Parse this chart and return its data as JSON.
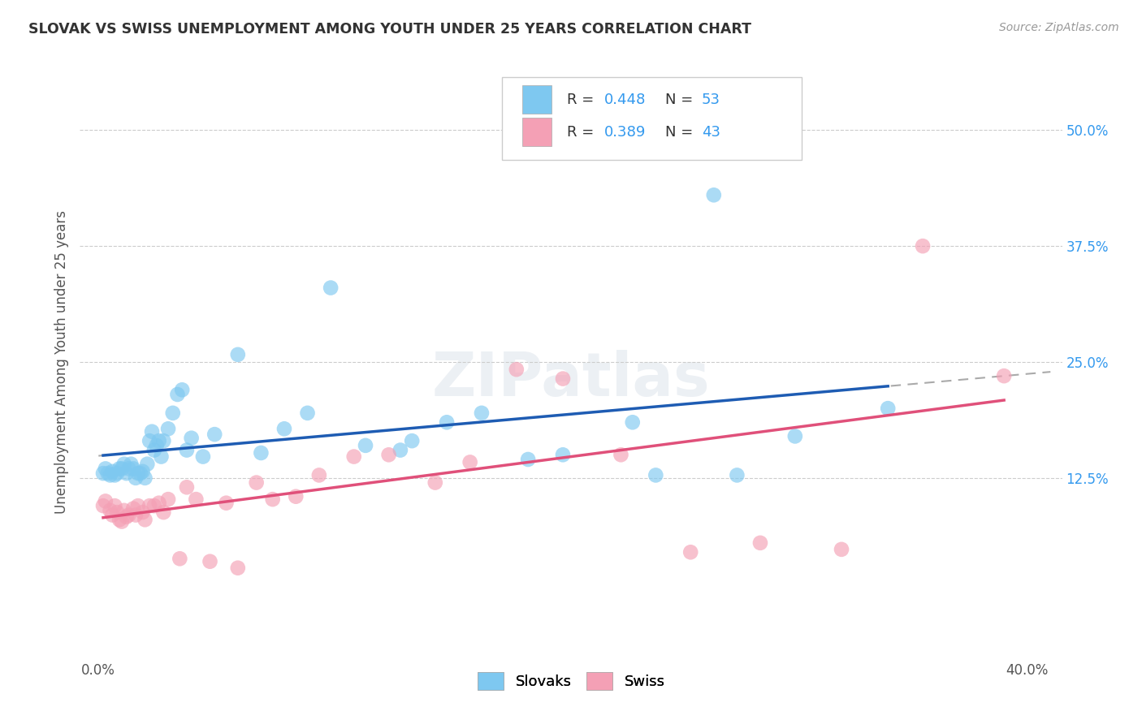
{
  "title": "SLOVAK VS SWISS UNEMPLOYMENT AMONG YOUTH UNDER 25 YEARS CORRELATION CHART",
  "source": "Source: ZipAtlas.com",
  "ylabel": "Unemployment Among Youth under 25 years",
  "xlim": [
    -0.008,
    0.415
  ],
  "ylim": [
    -0.07,
    0.57
  ],
  "yticks": [
    0.125,
    0.25,
    0.375,
    0.5
  ],
  "yticklabels": [
    "12.5%",
    "25.0%",
    "37.5%",
    "50.0%"
  ],
  "xticks": [
    0.0,
    0.1,
    0.2,
    0.3,
    0.4
  ],
  "xticklabels": [
    "0.0%",
    "",
    "",
    "",
    "40.0%"
  ],
  "slovak_color": "#7EC8F0",
  "swiss_color": "#F4A0B5",
  "slovak_line_color": "#1E5CB3",
  "swiss_line_color": "#E0507A",
  "trend_line_color": "#aaaaaa",
  "bg_color": "#ffffff",
  "grid_color": "#cccccc",
  "slovak_x": [
    0.002,
    0.003,
    0.004,
    0.005,
    0.006,
    0.007,
    0.008,
    0.009,
    0.01,
    0.011,
    0.012,
    0.013,
    0.014,
    0.015,
    0.016,
    0.017,
    0.018,
    0.019,
    0.02,
    0.021,
    0.022,
    0.023,
    0.024,
    0.025,
    0.026,
    0.027,
    0.028,
    0.03,
    0.032,
    0.034,
    0.036,
    0.038,
    0.04,
    0.045,
    0.05,
    0.06,
    0.07,
    0.08,
    0.09,
    0.1,
    0.115,
    0.13,
    0.15,
    0.165,
    0.185,
    0.2,
    0.23,
    0.265,
    0.3,
    0.34,
    0.24,
    0.275,
    0.135
  ],
  "slovak_y": [
    0.13,
    0.135,
    0.13,
    0.128,
    0.132,
    0.128,
    0.13,
    0.135,
    0.135,
    0.14,
    0.13,
    0.135,
    0.14,
    0.135,
    0.125,
    0.13,
    0.13,
    0.132,
    0.125,
    0.14,
    0.165,
    0.175,
    0.155,
    0.16,
    0.165,
    0.148,
    0.165,
    0.178,
    0.195,
    0.215,
    0.22,
    0.155,
    0.168,
    0.148,
    0.172,
    0.258,
    0.152,
    0.178,
    0.195,
    0.33,
    0.16,
    0.155,
    0.185,
    0.195,
    0.145,
    0.15,
    0.185,
    0.43,
    0.17,
    0.2,
    0.128,
    0.128,
    0.165
  ],
  "swiss_x": [
    0.002,
    0.003,
    0.005,
    0.006,
    0.007,
    0.008,
    0.009,
    0.01,
    0.011,
    0.012,
    0.013,
    0.015,
    0.016,
    0.017,
    0.019,
    0.02,
    0.022,
    0.024,
    0.026,
    0.028,
    0.03,
    0.035,
    0.038,
    0.042,
    0.048,
    0.055,
    0.06,
    0.068,
    0.075,
    0.085,
    0.095,
    0.11,
    0.125,
    0.145,
    0.16,
    0.18,
    0.2,
    0.225,
    0.255,
    0.285,
    0.32,
    0.355,
    0.39
  ],
  "swiss_y": [
    0.095,
    0.1,
    0.09,
    0.085,
    0.095,
    0.088,
    0.08,
    0.078,
    0.09,
    0.083,
    0.085,
    0.092,
    0.085,
    0.095,
    0.088,
    0.08,
    0.095,
    0.095,
    0.098,
    0.088,
    0.102,
    0.038,
    0.115,
    0.102,
    0.035,
    0.098,
    0.028,
    0.12,
    0.102,
    0.105,
    0.128,
    0.148,
    0.15,
    0.12,
    0.142,
    0.242,
    0.232,
    0.15,
    0.045,
    0.055,
    0.048,
    0.375,
    0.235
  ]
}
